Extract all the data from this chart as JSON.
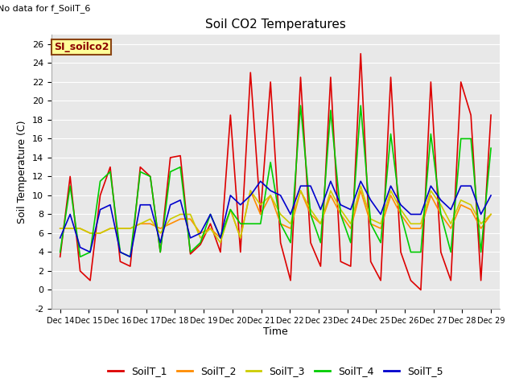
{
  "title": "Soil CO2 Temperatures",
  "no_data_text": "No data for f_SoilT_6",
  "legend_box_label": "SI_soilco2",
  "ylabel": "Soil Temperature (C)",
  "xlabel": "Time",
  "ylim": [
    -2,
    27
  ],
  "yticks": [
    -2,
    0,
    2,
    4,
    6,
    8,
    10,
    12,
    14,
    16,
    18,
    20,
    22,
    24,
    26
  ],
  "fig_bg_color": "#ffffff",
  "plot_bg_color": "#e8e8e8",
  "x_labels": [
    "Dec 14",
    "Dec 15",
    "Dec 16",
    "Dec 17",
    "Dec 18",
    "Dec 19",
    "Dec 20",
    "Dec 21",
    "Dec 22",
    "Dec 23",
    "Dec 24",
    "Dec 25",
    "Dec 26",
    "Dec 27",
    "Dec 28",
    "Dec 29"
  ],
  "series": {
    "SoilT_1": {
      "color": "#dd0000",
      "data": [
        3.5,
        12.0,
        2.0,
        1.0,
        10.0,
        13.0,
        3.0,
        2.5,
        13.0,
        12.0,
        4.0,
        14.0,
        14.2,
        3.8,
        4.8,
        7.0,
        4.0,
        18.5,
        4.0,
        23.0,
        8.0,
        22.0,
        5.0,
        1.0,
        22.5,
        5.0,
        2.5,
        22.5,
        3.0,
        2.5,
        25.0,
        3.0,
        1.0,
        22.5,
        4.0,
        1.0,
        0.0,
        22.0,
        4.0,
        1.0,
        22.0,
        18.5,
        1.0,
        18.5
      ]
    },
    "SoilT_2": {
      "color": "#ff8c00",
      "data": [
        6.5,
        6.5,
        6.5,
        6.0,
        6.0,
        6.5,
        6.5,
        6.5,
        7.0,
        7.0,
        6.5,
        7.0,
        7.5,
        7.5,
        6.0,
        6.5,
        5.5,
        8.5,
        5.5,
        10.5,
        8.0,
        10.0,
        7.0,
        6.5,
        10.5,
        8.0,
        7.0,
        10.0,
        8.0,
        6.5,
        10.5,
        7.0,
        6.5,
        10.0,
        8.0,
        6.5,
        6.5,
        10.0,
        8.0,
        6.5,
        9.0,
        8.5,
        6.5,
        8.0
      ]
    },
    "SoilT_3": {
      "color": "#cccc00",
      "data": [
        6.5,
        6.5,
        6.5,
        6.0,
        6.0,
        6.5,
        6.5,
        6.5,
        7.0,
        7.5,
        6.0,
        7.5,
        8.0,
        8.0,
        5.5,
        6.5,
        5.0,
        8.5,
        5.5,
        10.5,
        9.0,
        10.0,
        8.0,
        7.0,
        10.5,
        8.5,
        7.0,
        10.5,
        8.5,
        7.0,
        11.0,
        7.5,
        7.0,
        10.5,
        8.5,
        7.0,
        7.0,
        10.5,
        9.0,
        7.0,
        9.5,
        9.0,
        7.0,
        8.0
      ]
    },
    "SoilT_4": {
      "color": "#00cc00",
      "data": [
        4.0,
        11.0,
        3.5,
        4.0,
        11.5,
        12.5,
        4.0,
        3.5,
        12.5,
        12.0,
        4.0,
        12.5,
        13.0,
        4.0,
        5.0,
        8.0,
        5.5,
        8.5,
        7.0,
        7.0,
        7.0,
        13.5,
        7.0,
        5.0,
        19.5,
        8.0,
        5.0,
        19.0,
        8.0,
        5.0,
        19.5,
        7.0,
        5.0,
        16.5,
        8.0,
        4.0,
        4.0,
        16.5,
        8.0,
        4.0,
        16.0,
        16.0,
        4.0,
        15.0
      ]
    },
    "SoilT_5": {
      "color": "#0000cc",
      "data": [
        5.5,
        8.0,
        4.5,
        4.0,
        8.5,
        9.0,
        4.0,
        3.5,
        9.0,
        9.0,
        5.0,
        9.0,
        9.5,
        5.5,
        6.0,
        8.0,
        5.5,
        10.0,
        9.0,
        10.0,
        11.5,
        10.5,
        10.0,
        8.0,
        11.0,
        11.0,
        8.5,
        11.5,
        9.0,
        8.5,
        11.5,
        9.5,
        8.0,
        11.0,
        9.0,
        8.0,
        8.0,
        11.0,
        9.5,
        8.5,
        11.0,
        11.0,
        8.0,
        10.0
      ]
    }
  },
  "legend_entries": [
    {
      "label": "SoilT_1",
      "color": "#dd0000"
    },
    {
      "label": "SoilT_2",
      "color": "#ff8c00"
    },
    {
      "label": "SoilT_3",
      "color": "#cccc00"
    },
    {
      "label": "SoilT_4",
      "color": "#00cc00"
    },
    {
      "label": "SoilT_5",
      "color": "#0000cc"
    }
  ]
}
